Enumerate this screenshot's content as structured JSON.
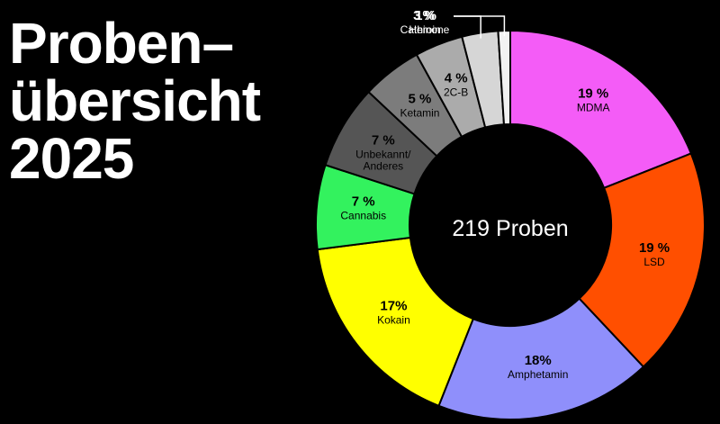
{
  "title": {
    "line1": "Proben–",
    "line2": "übersicht",
    "line3": "2025"
  },
  "center_label": "219 Proben",
  "chart_data": {
    "type": "pie",
    "donut": true,
    "total_label": "219 Proben",
    "slices": [
      {
        "name": "MDMA",
        "label": "19 %",
        "value": 19,
        "color": "#f45cf7"
      },
      {
        "name": "LSD",
        "label": "19 %",
        "value": 19,
        "color": "#ff4f00"
      },
      {
        "name": "Amphetamin",
        "label": "18%",
        "value": 18,
        "color": "#8f8ffb"
      },
      {
        "name": "Kokain",
        "label": "17%",
        "value": 17,
        "color": "#ffff00"
      },
      {
        "name": "Cannabis",
        "label": "7 %",
        "value": 7,
        "color": "#33f25e"
      },
      {
        "name": "Unbekannt/ Anderes",
        "label": "7 %",
        "value": 7,
        "color": "#555555"
      },
      {
        "name": "Ketamin",
        "label": "5 %",
        "value": 5,
        "color": "#7c7c7c"
      },
      {
        "name": "2C-B",
        "label": "4 %",
        "value": 4,
        "color": "#ababab"
      },
      {
        "name": "Heroin",
        "label": "3 %",
        "value": 3,
        "color": "#d6d6d6"
      },
      {
        "name": "Cathinone",
        "label": "1%",
        "value": 1,
        "color": "#f2f2f2"
      }
    ]
  }
}
